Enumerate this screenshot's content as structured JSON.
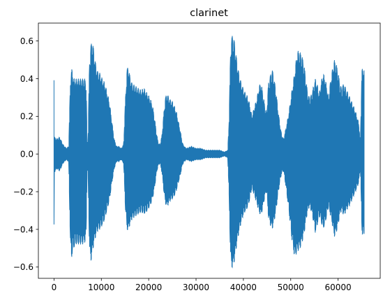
{
  "chart_data": {
    "type": "line",
    "title": "clarinet",
    "xlabel": "",
    "ylabel": "",
    "xlim": [
      -3300,
      68900
    ],
    "ylim": [
      -0.66,
      0.695
    ],
    "xticks": [
      0,
      10000,
      20000,
      30000,
      40000,
      50000,
      60000
    ],
    "xtick_labels": [
      "0",
      "10000",
      "20000",
      "30000",
      "40000",
      "50000",
      "60000"
    ],
    "yticks": [
      -0.6,
      -0.4,
      -0.2,
      0.0,
      0.2,
      0.4,
      0.6
    ],
    "ytick_labels": [
      "−0.6",
      "−0.4",
      "−0.2",
      "0.0",
      "0.2",
      "0.4",
      "0.6"
    ],
    "grid": false,
    "series": [
      {
        "color": "#1f77b4",
        "envelope": {
          "x": [
            0,
            600,
            1200,
            1900,
            2600,
            3100,
            3500,
            3700,
            3900,
            4200,
            4500,
            5000,
            5500,
            6000,
            6500,
            6800,
            7000,
            7200,
            7500,
            7800,
            8100,
            8400,
            8800,
            9200,
            9700,
            10200,
            10700,
            11200,
            11700,
            12200,
            12700,
            13200,
            13700,
            14200,
            14700,
            15100,
            15400,
            15700,
            16000,
            16400,
            16800,
            17300,
            17800,
            18400,
            19000,
            19500,
            20000,
            20400,
            20800,
            21200,
            21600,
            22000,
            22400,
            22800,
            23200,
            23500,
            23800,
            24100,
            24500,
            25000,
            25500,
            25900,
            26300,
            26700,
            27100,
            27500,
            28000,
            29000,
            30000,
            31000,
            32000,
            33000,
            34000,
            35000,
            36000,
            36700,
            37000,
            37300,
            37700,
            38100,
            38500,
            38900,
            39300,
            39800,
            40300,
            40800,
            41300,
            41800,
            42300,
            42800,
            43300,
            43700,
            44100,
            44500,
            44900,
            45300,
            45700,
            46100,
            46500,
            46900,
            47300,
            47700,
            48100,
            48500,
            49000,
            49600,
            50200,
            50800,
            51400,
            52000,
            52400,
            52800,
            53200,
            53600,
            54000,
            54400,
            54800,
            55200,
            55600,
            56000,
            56400,
            56800,
            57200,
            57600,
            58000,
            58400,
            58800,
            59200,
            59600,
            60000,
            60400,
            60800,
            61200,
            61600,
            62000,
            62500,
            63000,
            63500,
            64000,
            64400,
            64700,
            65000,
            65200,
            65500
          ],
          "upper": [
            0.09,
            0.08,
            0.09,
            0.05,
            0.03,
            0.04,
            0.42,
            0.46,
            0.43,
            0.4,
            0.4,
            0.4,
            0.4,
            0.4,
            0.4,
            0.38,
            0.05,
            0.1,
            0.5,
            0.58,
            0.61,
            0.55,
            0.48,
            0.44,
            0.43,
            0.4,
            0.38,
            0.33,
            0.28,
            0.18,
            0.08,
            0.04,
            0.04,
            0.03,
            0.05,
            0.3,
            0.45,
            0.47,
            0.42,
            0.38,
            0.37,
            0.36,
            0.35,
            0.34,
            0.35,
            0.33,
            0.31,
            0.29,
            0.26,
            0.2,
            0.12,
            0.06,
            0.05,
            0.1,
            0.22,
            0.3,
            0.32,
            0.31,
            0.29,
            0.28,
            0.25,
            0.22,
            0.17,
            0.12,
            0.06,
            0.04,
            0.03,
            0.04,
            0.03,
            0.03,
            0.02,
            0.02,
            0.02,
            0.02,
            0.01,
            0.02,
            0.2,
            0.58,
            0.64,
            0.6,
            0.52,
            0.45,
            0.4,
            0.36,
            0.33,
            0.31,
            0.27,
            0.2,
            0.25,
            0.29,
            0.36,
            0.38,
            0.33,
            0.26,
            0.22,
            0.38,
            0.42,
            0.45,
            0.4,
            0.33,
            0.24,
            0.16,
            0.1,
            0.08,
            0.14,
            0.22,
            0.33,
            0.43,
            0.55,
            0.54,
            0.52,
            0.48,
            0.4,
            0.32,
            0.3,
            0.32,
            0.36,
            0.4,
            0.37,
            0.32,
            0.38,
            0.43,
            0.41,
            0.36,
            0.3,
            0.39,
            0.45,
            0.5,
            0.48,
            0.44,
            0.37,
            0.35,
            0.38,
            0.35,
            0.33,
            0.3,
            0.27,
            0.24,
            0.2,
            0.16,
            0.06,
            0.44,
            0.46,
            0.45
          ],
          "lower": [
            -0.1,
            -0.08,
            -0.09,
            -0.05,
            -0.03,
            -0.04,
            -0.52,
            -0.56,
            -0.52,
            -0.5,
            -0.48,
            -0.48,
            -0.48,
            -0.48,
            -0.47,
            -0.45,
            -0.06,
            -0.12,
            -0.52,
            -0.57,
            -0.53,
            -0.48,
            -0.44,
            -0.41,
            -0.4,
            -0.38,
            -0.35,
            -0.3,
            -0.25,
            -0.16,
            -0.08,
            -0.04,
            -0.04,
            -0.03,
            -0.05,
            -0.3,
            -0.4,
            -0.41,
            -0.38,
            -0.35,
            -0.34,
            -0.33,
            -0.32,
            -0.31,
            -0.32,
            -0.31,
            -0.29,
            -0.27,
            -0.24,
            -0.19,
            -0.11,
            -0.06,
            -0.05,
            -0.1,
            -0.2,
            -0.26,
            -0.28,
            -0.27,
            -0.25,
            -0.24,
            -0.22,
            -0.19,
            -0.15,
            -0.11,
            -0.06,
            -0.04,
            -0.03,
            -0.04,
            -0.03,
            -0.03,
            -0.02,
            -0.02,
            -0.02,
            -0.02,
            -0.01,
            -0.02,
            -0.25,
            -0.58,
            -0.61,
            -0.57,
            -0.5,
            -0.44,
            -0.39,
            -0.34,
            -0.31,
            -0.29,
            -0.25,
            -0.18,
            -0.22,
            -0.26,
            -0.31,
            -0.33,
            -0.29,
            -0.23,
            -0.2,
            -0.34,
            -0.38,
            -0.4,
            -0.36,
            -0.3,
            -0.22,
            -0.15,
            -0.1,
            -0.09,
            -0.18,
            -0.3,
            -0.45,
            -0.55,
            -0.52,
            -0.5,
            -0.47,
            -0.43,
            -0.36,
            -0.3,
            -0.28,
            -0.31,
            -0.36,
            -0.42,
            -0.38,
            -0.33,
            -0.36,
            -0.4,
            -0.38,
            -0.33,
            -0.28,
            -0.33,
            -0.38,
            -0.44,
            -0.42,
            -0.38,
            -0.32,
            -0.3,
            -0.33,
            -0.31,
            -0.29,
            -0.27,
            -0.24,
            -0.21,
            -0.18,
            -0.15,
            -0.06,
            -0.4,
            -0.44,
            -0.43
          ]
        }
      }
    ]
  }
}
